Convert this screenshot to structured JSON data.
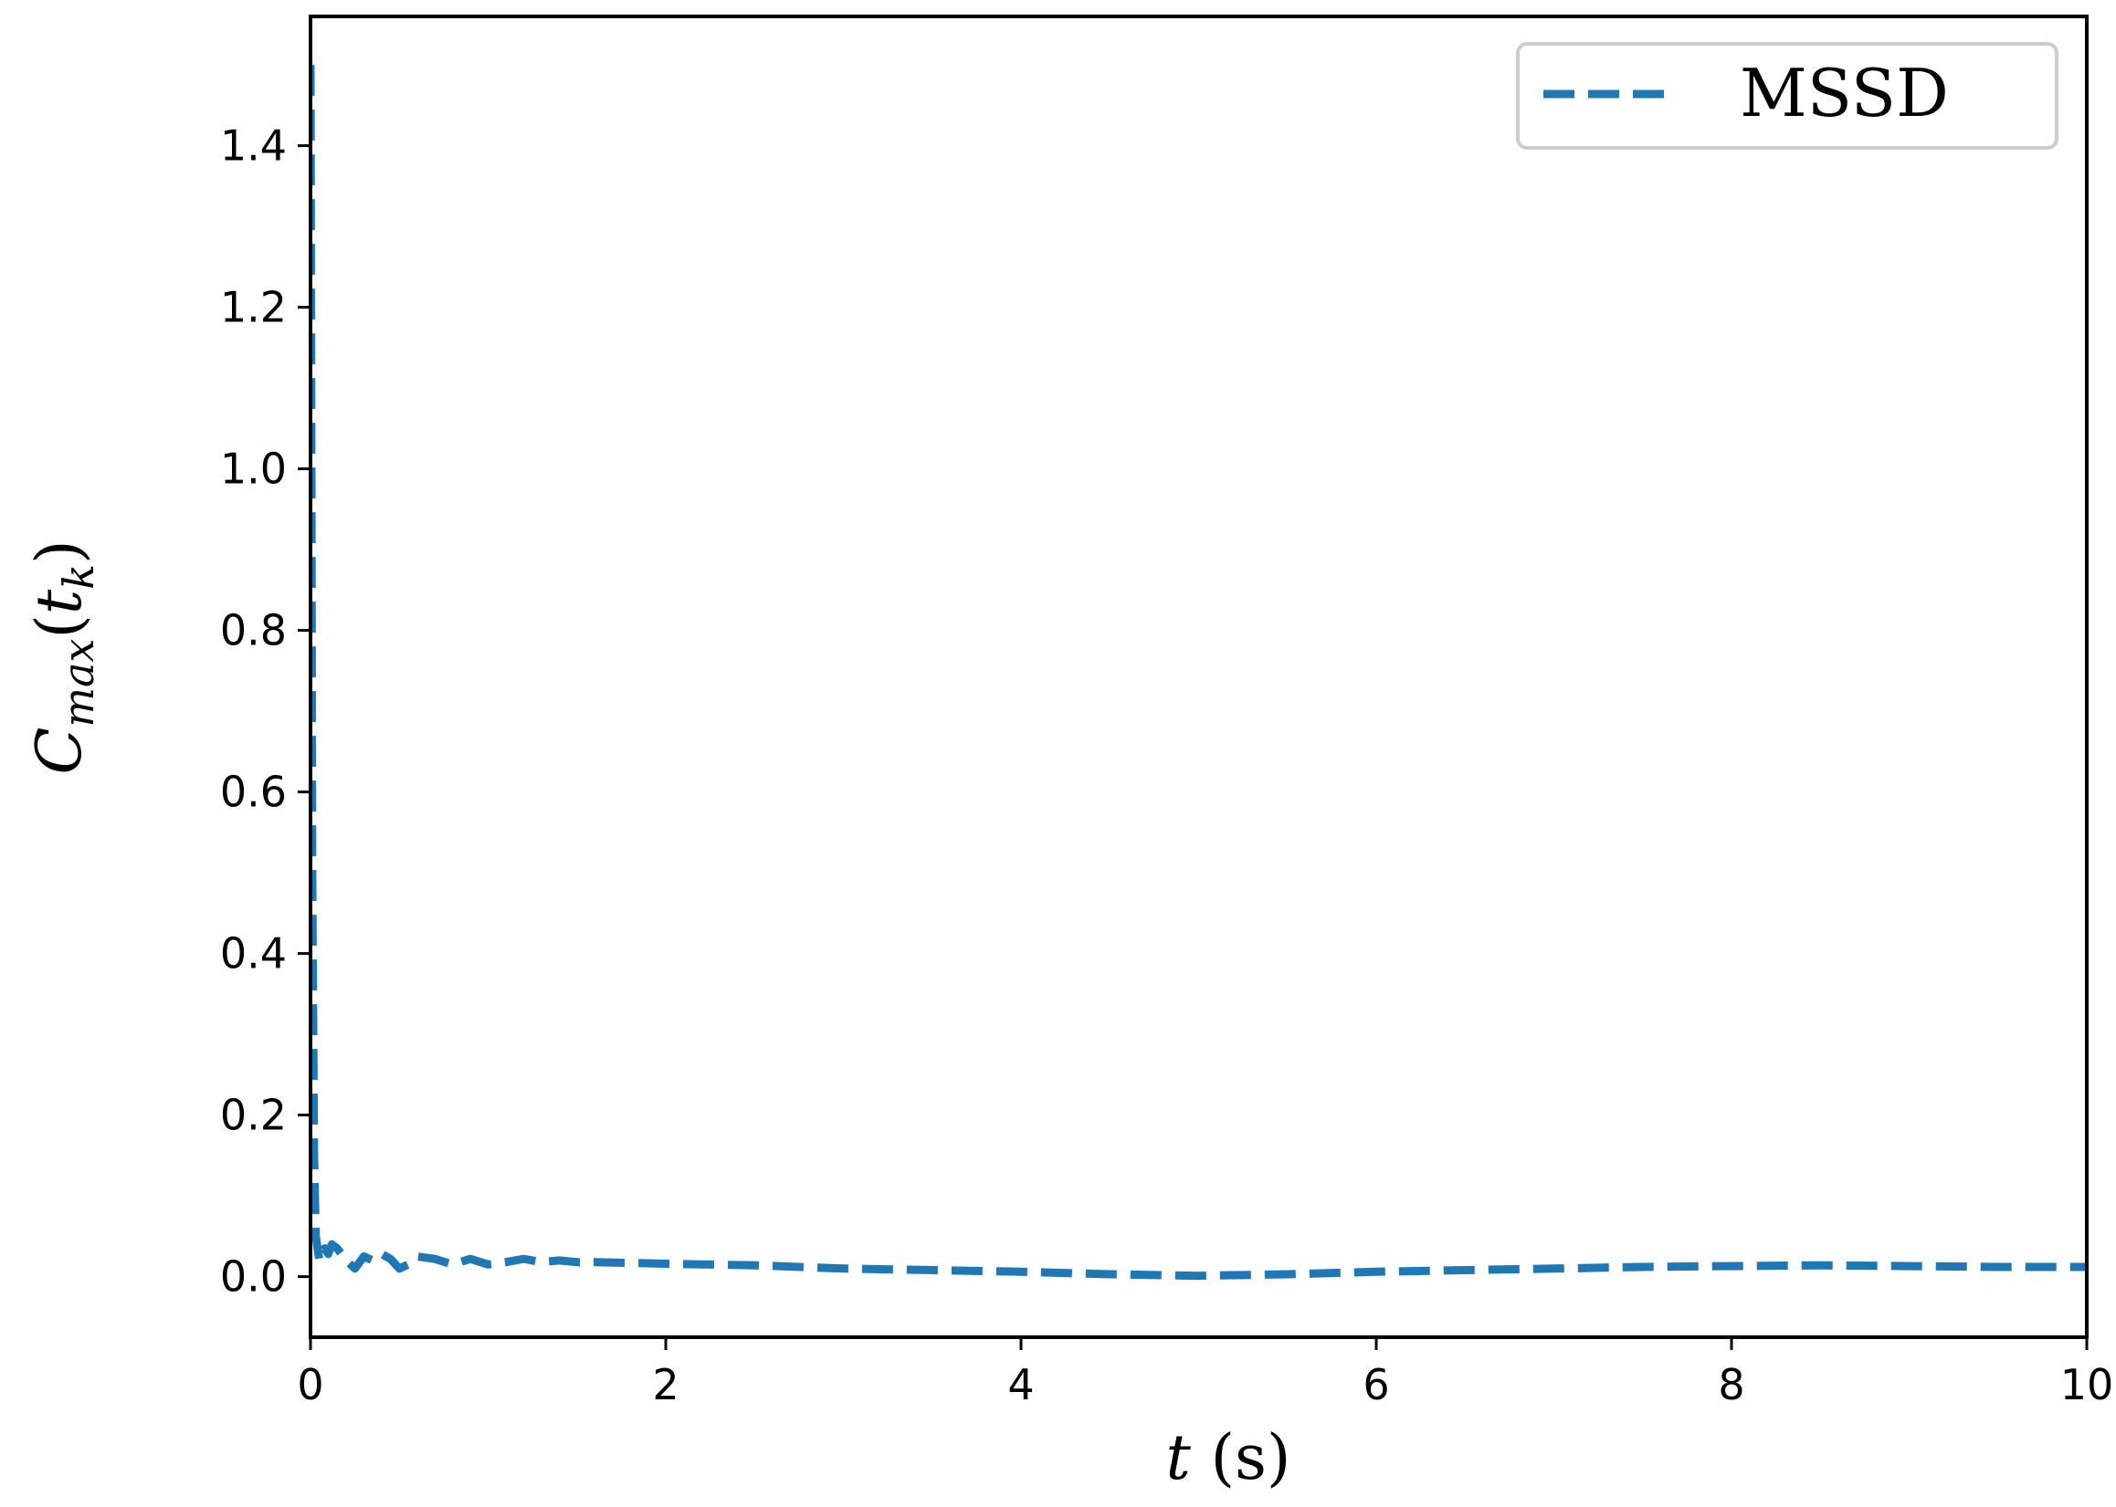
{
  "chart_data": {
    "type": "line",
    "title": "",
    "xlabel": "t (s)",
    "ylabel": "C_max(t_k)",
    "xlabel_parts": {
      "var": "t",
      "unit": " (s)"
    },
    "ylabel_parts": {
      "main": "C",
      "sub": "max",
      "paren_open": "(",
      "arg": "t",
      "arg_sub": "k",
      "paren_close": ")"
    },
    "xlim": [
      0,
      10
    ],
    "ylim": [
      -0.075,
      1.56
    ],
    "xticks": [
      0,
      2,
      4,
      6,
      8,
      10
    ],
    "xtick_labels": [
      "0",
      "2",
      "4",
      "6",
      "8",
      "10"
    ],
    "yticks": [
      0.0,
      0.2,
      0.4,
      0.6,
      0.8,
      1.0,
      1.2,
      1.4
    ],
    "ytick_labels": [
      "0.0",
      "0.2",
      "0.4",
      "0.6",
      "0.8",
      "1.0",
      "1.2",
      "1.4"
    ],
    "grid": false,
    "legend_position": "top-right",
    "series": [
      {
        "name": "MSSD",
        "color": "#1f77b4",
        "linestyle": "dashed",
        "x": [
          0,
          0.005,
          0.01,
          0.02,
          0.03,
          0.05,
          0.08,
          0.1,
          0.12,
          0.15,
          0.2,
          0.25,
          0.3,
          0.35,
          0.4,
          0.45,
          0.5,
          0.55,
          0.6,
          0.7,
          0.8,
          0.9,
          1.0,
          1.1,
          1.2,
          1.3,
          1.4,
          1.5,
          1.6,
          1.8,
          2.0,
          2.5,
          3.0,
          3.5,
          4.0,
          4.5,
          5.0,
          5.5,
          6.0,
          6.5,
          7.0,
          7.5,
          8.0,
          8.5,
          9.0,
          9.5,
          10.0
        ],
        "y": [
          1.5,
          1.0,
          0.5,
          0.15,
          0.05,
          0.02,
          0.035,
          0.028,
          0.04,
          0.035,
          0.02,
          0.01,
          0.025,
          0.02,
          0.028,
          0.022,
          0.01,
          0.015,
          0.025,
          0.022,
          0.015,
          0.022,
          0.015,
          0.018,
          0.022,
          0.018,
          0.02,
          0.018,
          0.018,
          0.017,
          0.016,
          0.014,
          0.01,
          0.008,
          0.006,
          0.003,
          0.001,
          0.003,
          0.006,
          0.008,
          0.01,
          0.012,
          0.013,
          0.014,
          0.013,
          0.012,
          0.012
        ]
      }
    ]
  }
}
